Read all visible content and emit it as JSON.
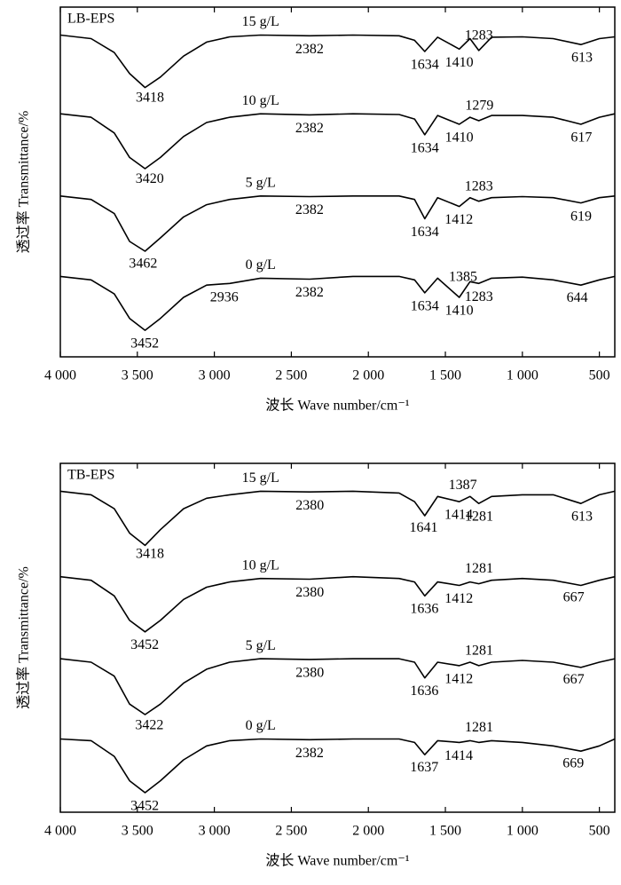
{
  "chart_data": [
    {
      "type": "line",
      "title": "LB-EPS",
      "xlabel": "波长 Wave number/cm⁻¹",
      "ylabel": "透过率 Transmittance/%",
      "x": [
        4000,
        3800,
        3650,
        3550,
        3450,
        3350,
        3200,
        3050,
        2900,
        2700,
        2382,
        2100,
        1800,
        1700,
        1634,
        1550,
        1410,
        1340,
        1283,
        1200,
        1000,
        800,
        620,
        500,
        400
      ],
      "xlim": [
        4000,
        400
      ],
      "xticks": [
        {
          "value": 4000,
          "label": "4 000"
        },
        {
          "value": 3500,
          "label": "3 500"
        },
        {
          "value": 3000,
          "label": "3 000"
        },
        {
          "value": 2500,
          "label": "2 500"
        },
        {
          "value": 2000,
          "label": "2 000"
        },
        {
          "value": 1500,
          "label": "1 500"
        },
        {
          "value": 1000,
          "label": "1 000"
        },
        500
      ],
      "ylim": [
        0,
        100
      ],
      "series": [
        {
          "name": "15 g/L",
          "color": "#000000",
          "values": [
            92,
            91,
            87,
            81,
            77,
            80,
            86,
            90,
            91.5,
            92,
            91.8,
            92,
            91.8,
            90.5,
            87.3,
            91.4,
            88,
            91,
            87.6,
            91.4,
            91.5,
            91,
            89.3,
            91,
            91.5
          ],
          "peaks": [
            3418,
            2382,
            1634,
            1410,
            1283,
            613
          ]
        },
        {
          "name": "10 g/L",
          "color": "#000000",
          "values": [
            69.5,
            68.5,
            64,
            57,
            53.8,
            57,
            63,
            67,
            68.5,
            69.5,
            69.2,
            69.5,
            69.3,
            68,
            63.5,
            69,
            66.5,
            68.5,
            67.5,
            69,
            69,
            68.5,
            66.5,
            68.5,
            69.5
          ],
          "peaks": [
            3420,
            2382,
            1634,
            1410,
            1279,
            617
          ]
        },
        {
          "name": "5 g/L",
          "color": "#000000",
          "values": [
            46,
            45,
            41,
            33,
            30.2,
            34,
            40,
            43.5,
            45,
            46,
            45.8,
            46,
            46,
            45,
            39.5,
            45.5,
            43,
            45.5,
            44.5,
            45.5,
            45.8,
            45.5,
            44,
            45.5,
            46
          ],
          "peaks": [
            3462,
            2382,
            1634,
            1412,
            1283,
            619
          ]
        },
        {
          "name": "0 g/L",
          "color": "#000000",
          "values": [
            23,
            22,
            18,
            11,
            7.6,
            11,
            17,
            20.5,
            21,
            22.5,
            22.2,
            23,
            23,
            22,
            18.3,
            22.5,
            17,
            21.5,
            21,
            22.5,
            22.8,
            22,
            20.5,
            22,
            23
          ],
          "peaks": [
            3452,
            2936,
            2382,
            1634,
            1410,
            1385,
            1283,
            644
          ]
        }
      ]
    },
    {
      "type": "line",
      "title": "TB-EPS",
      "xlabel": "波长 Wave number/cm⁻¹",
      "ylabel": "透过率 Transmittance/%",
      "x": [
        4000,
        3800,
        3650,
        3550,
        3450,
        3350,
        3200,
        3050,
        2900,
        2700,
        2382,
        2100,
        1800,
        1700,
        1634,
        1550,
        1410,
        1340,
        1283,
        1200,
        1000,
        800,
        620,
        500,
        400
      ],
      "xlim": [
        4000,
        400
      ],
      "xticks": [
        {
          "value": 4000,
          "label": "4 000"
        },
        {
          "value": 3500,
          "label": "3 500"
        },
        {
          "value": 3000,
          "label": "3 000"
        },
        {
          "value": 2500,
          "label": "2 500"
        },
        {
          "value": 2000,
          "label": "2 000"
        },
        {
          "value": 1500,
          "label": "1 500"
        },
        {
          "value": 1000,
          "label": "1 000"
        },
        500
      ],
      "ylim": [
        0,
        100
      ],
      "series": [
        {
          "name": "15 g/L",
          "color": "#000000",
          "values": [
            92,
            91,
            87,
            80,
            76.5,
            81,
            87,
            90,
            91,
            92,
            91.8,
            92,
            91.5,
            89,
            85,
            90.5,
            89,
            90.5,
            88.5,
            90.5,
            91,
            91,
            88.5,
            91,
            92
          ],
          "peaks": [
            3418,
            2380,
            1641,
            1414,
            1387,
            1281,
            613
          ]
        },
        {
          "name": "10 g/L",
          "color": "#000000",
          "values": [
            67.5,
            66.5,
            62,
            55,
            51.7,
            55,
            61,
            64.5,
            66,
            67,
            66.8,
            67.5,
            67,
            66,
            62,
            66,
            65,
            66,
            65.5,
            66.5,
            67,
            66.5,
            65,
            66.5,
            67.5
          ],
          "peaks": [
            3452,
            2380,
            1636,
            1412,
            1281,
            667
          ]
        },
        {
          "name": "5 g/L",
          "color": "#000000",
          "values": [
            44,
            43,
            39,
            31,
            28,
            31,
            37,
            41,
            43,
            44,
            43.8,
            44,
            44,
            43,
            38.5,
            43,
            42,
            43,
            42,
            43,
            43.5,
            43,
            41.5,
            43,
            44
          ],
          "peaks": [
            3422,
            2380,
            1636,
            1412,
            1281,
            667
          ]
        },
        {
          "name": "0 g/L",
          "color": "#000000",
          "values": [
            21,
            20.5,
            16,
            9,
            5.6,
            9,
            15,
            19,
            20.5,
            21,
            20.8,
            21,
            21,
            20,
            16.5,
            20.5,
            20,
            20.5,
            20,
            20.5,
            20,
            19,
            17.5,
            19,
            21
          ],
          "peaks": [
            3452,
            2382,
            1637,
            1414,
            1281,
            669
          ]
        }
      ]
    }
  ]
}
